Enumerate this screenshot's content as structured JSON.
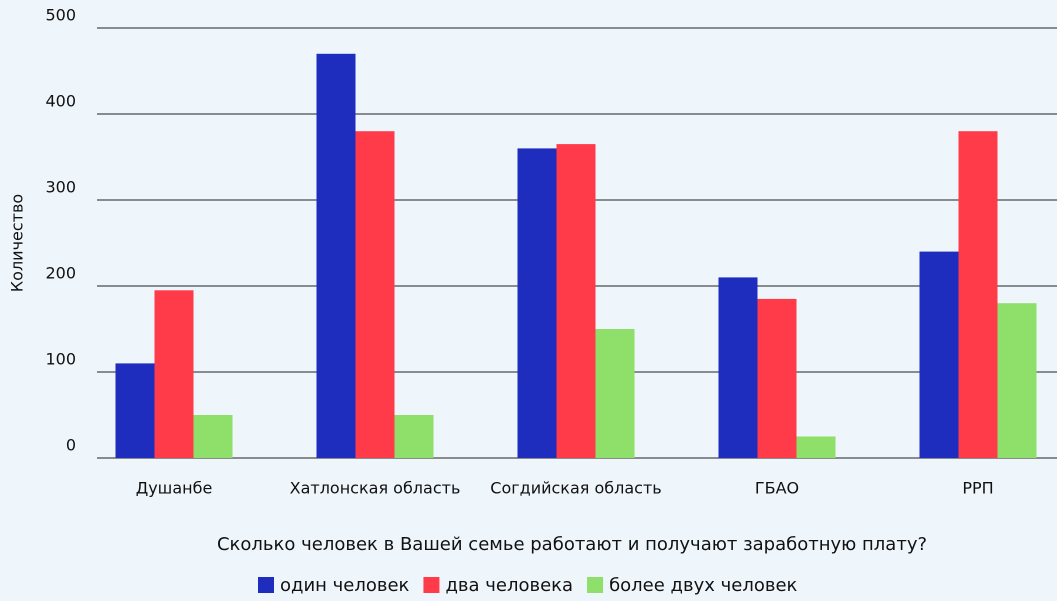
{
  "chart_data": {
    "type": "bar",
    "categories": [
      "Душанбе",
      "Хатлонская область",
      "Согдийская область",
      "ГБАО",
      "РРП"
    ],
    "series": [
      {
        "name": "один человек",
        "color": "#1f2dbf",
        "values": [
          110,
          470,
          360,
          210,
          240
        ]
      },
      {
        "name": "два человека",
        "color": "#ff3b4a",
        "values": [
          195,
          380,
          365,
          185,
          380
        ]
      },
      {
        "name": "более двух человек",
        "color": "#8fe06a",
        "values": [
          50,
          50,
          150,
          25,
          180
        ]
      }
    ],
    "ylabel": "Количество",
    "xlabel": "Сколько человек в Вашей семье работают и получают заработную плату?",
    "ylim": [
      0,
      500
    ],
    "yticks": [
      0,
      100,
      200,
      300,
      400,
      500
    ],
    "grid": true,
    "legend": "bottom"
  }
}
